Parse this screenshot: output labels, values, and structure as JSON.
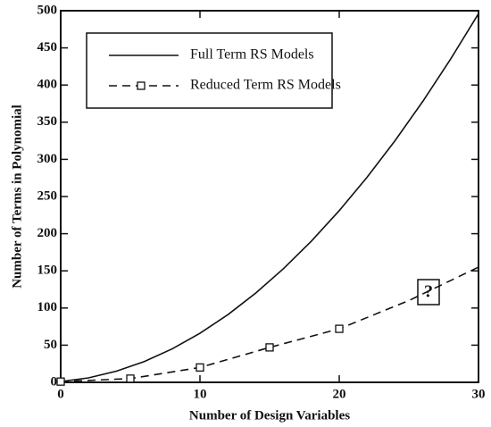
{
  "chart_data": {
    "type": "line",
    "xlabel": "Number of Design Variables",
    "ylabel": "Number of Terms in Polynomial",
    "xlim": [
      0,
      30
    ],
    "xticks": [
      0,
      10,
      20,
      30
    ],
    "ylim": [
      0,
      500
    ],
    "yticks": [
      0,
      50,
      100,
      150,
      200,
      250,
      300,
      350,
      400,
      450,
      500
    ],
    "grid": false,
    "legend": "upper left",
    "annotation": "?",
    "series": [
      {
        "name": "Full Term RS Models",
        "color": "#111111",
        "dash": false,
        "x": [
          0,
          2,
          4,
          6,
          8,
          10,
          12,
          14,
          16,
          18,
          20,
          22,
          24,
          26,
          28,
          30
        ],
        "values": [
          1,
          6,
          15,
          28,
          45,
          66,
          91,
          120,
          153,
          190,
          231,
          276,
          325,
          378,
          435,
          496
        ],
        "markers": [
          false,
          false,
          false,
          false,
          false,
          false,
          false,
          false,
          false,
          false,
          false,
          false,
          false,
          false,
          false,
          false
        ]
      },
      {
        "name": "Reduced Term RS Models",
        "color": "#111111",
        "dash": true,
        "x": [
          0,
          5,
          10,
          15,
          20,
          25,
          30
        ],
        "values": [
          1,
          5,
          20,
          47,
          72,
          110,
          155
        ],
        "markers": [
          true,
          true,
          true,
          true,
          true,
          false,
          false
        ]
      }
    ]
  }
}
